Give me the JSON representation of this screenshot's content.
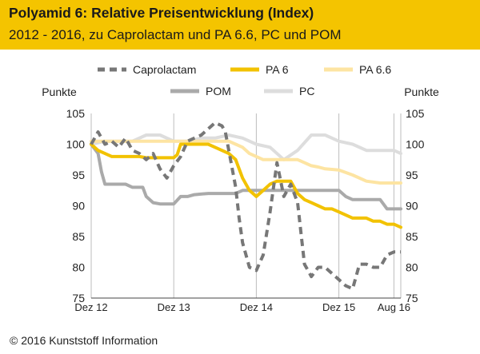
{
  "header": {
    "title": "Polyamid 6: Relative Preisentwicklung (Index)",
    "subtitle": "2012 - 2016, zu Caprolactam und PA 6.6, PC und POM"
  },
  "footer": {
    "copyright": "© 2016 Kunststoff Information"
  },
  "chart_data": {
    "type": "line",
    "ylabel_left": "Punkte",
    "ylabel_right": "Punkte",
    "ylim": [
      75,
      105
    ],
    "yticks": [
      75,
      80,
      85,
      90,
      95,
      100,
      105
    ],
    "x_tick_labels": [
      "Dez 12",
      "Dez 13",
      "Dez 14",
      "Dez 15",
      "Aug 16"
    ],
    "x_tick_month_index": [
      0,
      12,
      24,
      36,
      44
    ],
    "x_range_month_index": [
      0,
      45
    ],
    "grid": "vertical-only",
    "legend_position": "top",
    "series": [
      {
        "name": "POM",
        "color": "#aaaaaa",
        "style": "solid",
        "x": [
          0,
          1,
          1.5,
          2,
          4,
          5,
          6,
          7,
          7.5,
          8,
          9,
          10,
          11,
          12,
          13,
          14,
          15,
          17,
          18,
          19,
          20,
          21,
          22,
          23,
          24,
          26,
          28,
          30,
          32,
          34,
          36,
          37,
          38,
          40,
          41,
          42,
          43,
          44,
          45
        ],
        "y": [
          100,
          98.5,
          95.5,
          93.5,
          93.5,
          93.5,
          93,
          93,
          93,
          91.5,
          90.5,
          90.3,
          90.3,
          90.3,
          91.5,
          91.5,
          91.8,
          92,
          92,
          92,
          92,
          92,
          92.5,
          92.5,
          92.5,
          92.5,
          92.5,
          92.5,
          92.5,
          92.5,
          92.5,
          91.5,
          91,
          91,
          91,
          91,
          89.5,
          89.5,
          89.5
        ]
      },
      {
        "name": "PC",
        "color": "#dddddd",
        "style": "solid",
        "x": [
          0,
          2,
          4,
          6,
          8,
          10,
          12,
          14,
          16,
          18,
          20,
          22,
          24,
          26,
          28,
          30,
          32,
          34,
          36,
          38,
          40,
          42,
          44,
          45
        ],
        "y": [
          100,
          100.5,
          100.5,
          100.5,
          101.5,
          101.5,
          100.5,
          100.5,
          101,
          101,
          101.5,
          101,
          100,
          99.5,
          97.5,
          99,
          101.5,
          101.5,
          100.5,
          100,
          99,
          99,
          99,
          98.5
        ]
      },
      {
        "name": "PA 6.6",
        "color": "#fde4a2",
        "style": "solid",
        "x": [
          0,
          2,
          4,
          6,
          8,
          10,
          12,
          14,
          16,
          18,
          20,
          21,
          22,
          23,
          24,
          25,
          26,
          28,
          30,
          31,
          32,
          33,
          34,
          36,
          38,
          40,
          42,
          44,
          45
        ],
        "y": [
          100.5,
          100.5,
          100.5,
          100.5,
          100.5,
          100.5,
          100.5,
          100.5,
          100.5,
          100.5,
          100.5,
          100,
          99.5,
          98.5,
          98,
          97.5,
          97.5,
          97.5,
          97.5,
          97,
          96.5,
          96.3,
          96,
          95.8,
          95,
          94,
          93.7,
          93.7,
          93.7
        ]
      },
      {
        "name": "PA 6",
        "color": "#f2c200",
        "style": "solid",
        "x": [
          0,
          1,
          2,
          3,
          4,
          5,
          6,
          7,
          8,
          9,
          10,
          11,
          12,
          12.5,
          13,
          14,
          15,
          16,
          17,
          18,
          19,
          20,
          21,
          22,
          23,
          24,
          25,
          26,
          27,
          28,
          29,
          30,
          31,
          32,
          33,
          34,
          35,
          36,
          37,
          38,
          39,
          40,
          41,
          42,
          43,
          44,
          45
        ],
        "y": [
          100,
          99,
          98.5,
          98,
          98,
          98,
          98,
          98,
          97.8,
          97.8,
          97.8,
          97.8,
          97.8,
          98.3,
          100,
          100,
          100,
          100,
          100,
          99.5,
          99,
          98.5,
          97.5,
          94.5,
          92.5,
          91.5,
          92.5,
          93.5,
          94,
          94,
          94,
          92,
          91,
          90.5,
          90,
          89.5,
          89.5,
          89,
          88.5,
          88,
          88,
          88,
          87.5,
          87.5,
          87,
          87,
          86.5
        ]
      },
      {
        "name": "Caprolactam",
        "color": "#777777",
        "style": "dashed",
        "x": [
          0,
          0.5,
          1,
          2,
          3,
          4,
          5,
          6,
          7,
          8,
          9,
          10,
          11,
          12,
          13,
          14,
          15,
          16,
          17,
          18,
          19,
          19.5,
          20,
          21,
          21.5,
          22,
          23,
          24,
          25,
          26,
          27,
          28,
          29,
          30,
          31,
          32,
          33,
          34,
          35,
          36,
          37,
          38,
          39,
          40,
          41,
          42,
          43,
          44,
          45
        ],
        "y": [
          100,
          101,
          102,
          100,
          100.5,
          99.5,
          101,
          99,
          98.5,
          97.5,
          98.5,
          96,
          94.5,
          96.5,
          98,
          100.5,
          101,
          101.5,
          102.5,
          103.5,
          103,
          102,
          99,
          93,
          88,
          84,
          80,
          79.5,
          82,
          89,
          97,
          91.5,
          93.5,
          90.5,
          80.5,
          78.5,
          80,
          80,
          79,
          78,
          77,
          76.5,
          80.5,
          80.5,
          80,
          80,
          82,
          82.5,
          82.5
        ]
      }
    ]
  }
}
